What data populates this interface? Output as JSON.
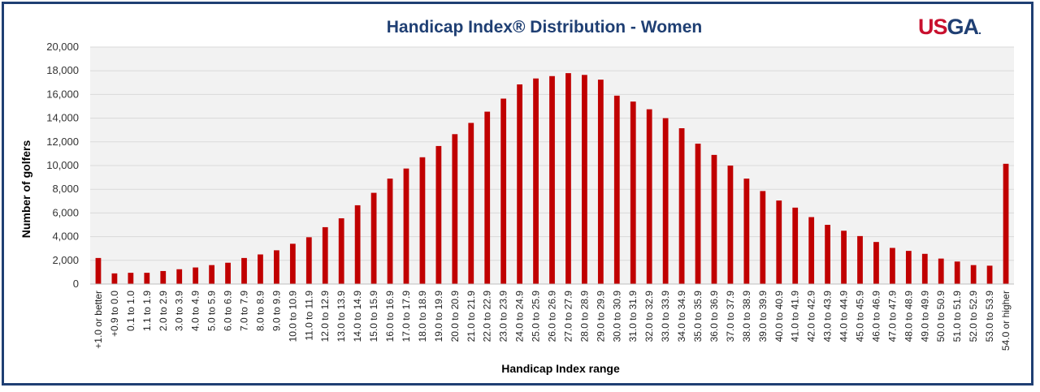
{
  "logo": {
    "us": "US",
    "ga": "GA",
    "mark": "."
  },
  "colors": {
    "bar": "#c00000",
    "frame": "#1f3f73",
    "title": "#1f3f73",
    "plot_bg": "#f2f2f2",
    "grid": "#d9d9d9"
  },
  "chart_data": {
    "type": "bar",
    "title": "Handicap Index® Distribution - Women",
    "xlabel": "Handicap Index range",
    "ylabel": "Number of golfers",
    "ylim": [
      0,
      20000
    ],
    "ytick_values": [
      0,
      2000,
      4000,
      6000,
      8000,
      10000,
      12000,
      14000,
      16000,
      18000,
      20000
    ],
    "ytick_labels": [
      "0",
      "2,000",
      "4,000",
      "6,000",
      "8,000",
      "10,000",
      "12,000",
      "14,000",
      "16,000",
      "18,000",
      "20,000"
    ],
    "grid": true,
    "legend": "none",
    "categories": [
      "+1.0 or better",
      "+0.9 to 0.0",
      "0.1 to 1.0",
      "1.1 to 1.9",
      "2.0 to 2.9",
      "3.0 to 3.9",
      "4.0 to 4.9",
      "5.0 to 5.9",
      "6.0 to 6.9",
      "7.0 to 7.9",
      "8.0 to 8.9",
      "9.0 to 9.9",
      "10.0 to 10.9",
      "11.0 to 11.9",
      "12.0 to 12.9",
      "13.0 to 13.9",
      "14.0 to 14.9",
      "15.0 to 15.9",
      "16.0 to 16.9",
      "17.0 to 17.9",
      "18.0 to 18.9",
      "19.0 to 19.9",
      "20.0 to 20.9",
      "21.0 to 21.9",
      "22.0 to 22.9",
      "23.0 to 23.9",
      "24.0 to 24.9",
      "25.0 to 25.9",
      "26.0 to 26.9",
      "27.0 to 27.9",
      "28.0 to 28.9",
      "29.0 to 29.9",
      "30.0 to 30.9",
      "31.0 to 31.9",
      "32.0 to 32.9",
      "33.0 to 33.9",
      "34.0 to 34.9",
      "35.0 to 35.9",
      "36.0 to 36.9",
      "37.0 to 37.9",
      "38.0 to 38.9",
      "39.0 to 39.9",
      "40.0 to 40.9",
      "41.0 to 41.9",
      "42.0 to 42.9",
      "43.0 to 43.9",
      "44.0 to 44.9",
      "45.0 to 45.9",
      "46.0 to 46.9",
      "47.0 to 47.9",
      "48.0 to 48.9",
      "49.0 to 49.9",
      "50.0 to 50.9",
      "51.0 to 51.9",
      "52.0 to 52.9",
      "53.0 to 53.9",
      "54.0 or higher"
    ],
    "values": [
      2200,
      900,
      950,
      950,
      1100,
      1250,
      1400,
      1600,
      1800,
      2200,
      2500,
      2850,
      3400,
      3950,
      4800,
      5550,
      6650,
      7700,
      8900,
      9750,
      10700,
      11650,
      12650,
      13600,
      14550,
      15650,
      16850,
      17350,
      17550,
      17800,
      17650,
      17250,
      15900,
      15400,
      14750,
      14000,
      13150,
      11850,
      10900,
      10000,
      8900,
      7850,
      7050,
      6450,
      5650,
      5000,
      4500,
      4050,
      3550,
      3050,
      2800,
      2550,
      2150,
      1900,
      1600,
      1550,
      10150
    ]
  }
}
